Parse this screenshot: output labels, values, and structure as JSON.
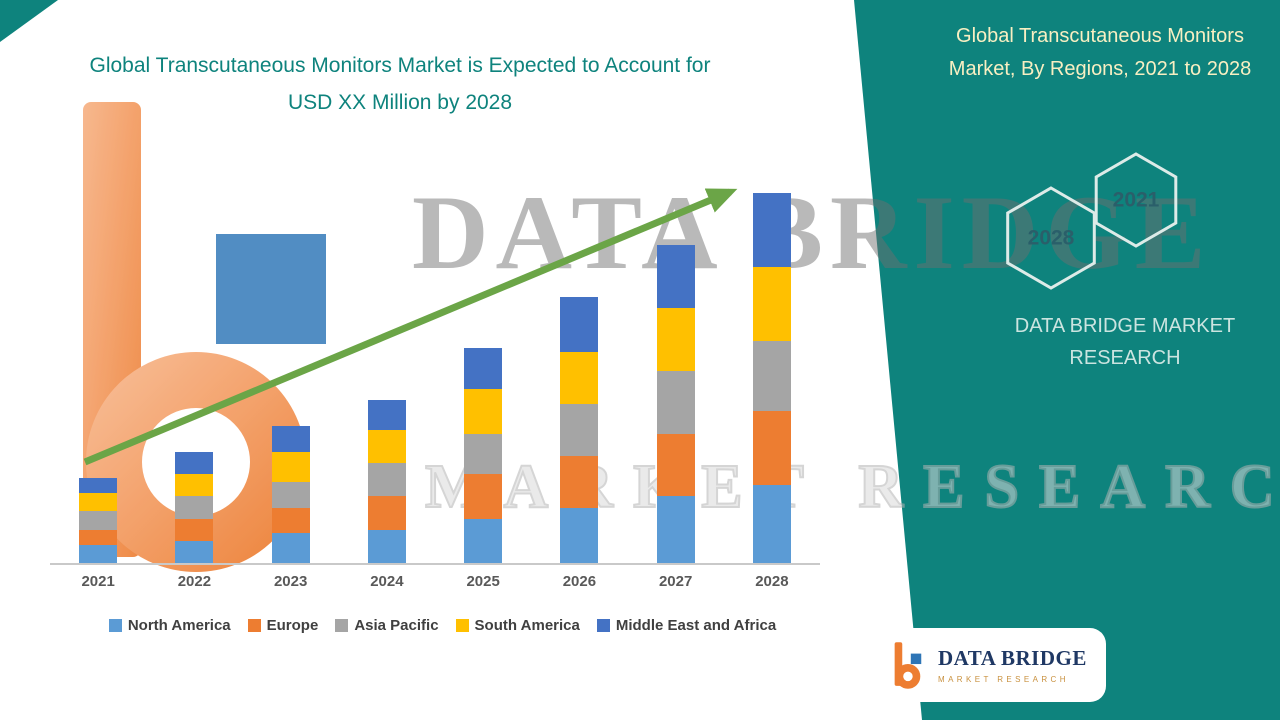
{
  "header": {
    "title": "Global Transcutaneous Monitors Market is Expected to Account for  USD XX Million by 2028"
  },
  "watermark": {
    "line1": "DATA BRIDGE",
    "line2": "MARKET RESEARCH"
  },
  "chart_data": {
    "type": "bar",
    "stacked": true,
    "title": "Global Transcutaneous Monitors Market, By Regions, 2021 to 2028",
    "xlabel": "",
    "ylabel": "",
    "categories": [
      "2021",
      "2022",
      "2023",
      "2024",
      "2025",
      "2026",
      "2027",
      "2028"
    ],
    "series": [
      {
        "name": "North America",
        "color": "#5B9BD5",
        "values": [
          5,
          6,
          8,
          9,
          12,
          15,
          18,
          21
        ]
      },
      {
        "name": "Europe",
        "color": "#ED7D31",
        "values": [
          4,
          6,
          7,
          9,
          12,
          14,
          17,
          20
        ]
      },
      {
        "name": "Asia Pacific",
        "color": "#A5A5A5",
        "values": [
          5,
          6,
          7,
          9,
          11,
          14,
          17,
          19
        ]
      },
      {
        "name": "South America",
        "color": "#FFC000",
        "values": [
          5,
          6,
          8,
          9,
          12,
          14,
          17,
          20
        ]
      },
      {
        "name": "Middle East and Africa",
        "color": "#4472C4",
        "values": [
          4,
          6,
          7,
          8,
          11,
          15,
          17,
          20
        ]
      }
    ],
    "ylim": [
      0,
      105
    ],
    "grid": false,
    "legend_position": "bottom",
    "trend_arrow": true,
    "trend_arrow_color": "#6BA547",
    "note": "values are relative units estimated from bar heights; axis unlabeled (USD XX Million)"
  },
  "side_panel": {
    "background": "#0E837D",
    "title": "Global Transcutaneous Monitors Market, By Regions,  2021 to 2028",
    "hexagons": [
      "2028",
      "2021"
    ],
    "brand": "DATA BRIDGE MARKET RESEARCH"
  },
  "logo_card": {
    "name": "DATA BRIDGE",
    "subtitle": "MARKET RESEARCH"
  },
  "colors": {
    "accent_teal": "#0E837D",
    "logo_orange": "#ED7D31",
    "logo_blue": "#2E75B6"
  }
}
